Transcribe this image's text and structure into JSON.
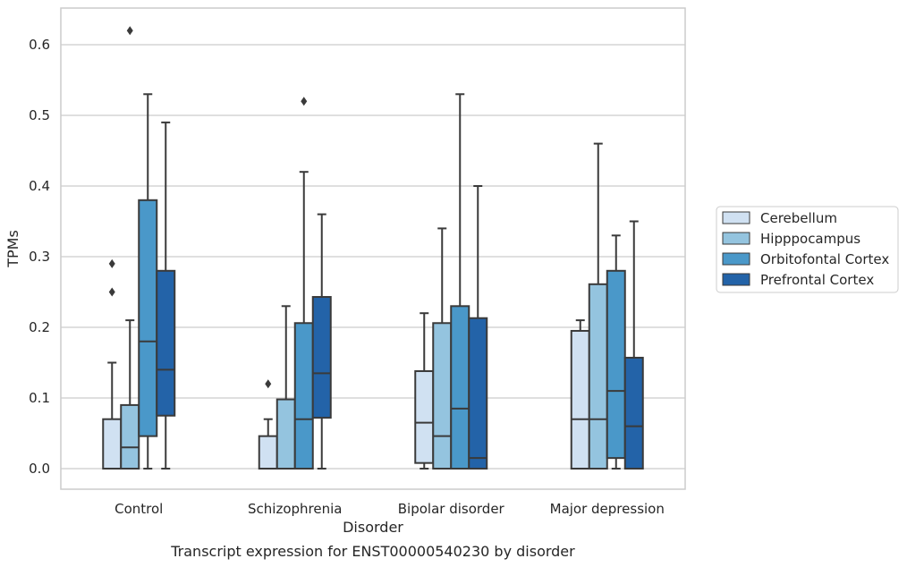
{
  "chart_data": {
    "type": "box",
    "caption": "Transcript expression for ENST00000540230 by disorder",
    "xlabel": "Disorder",
    "ylabel": "TPMs",
    "ylim": [
      -0.03,
      0.65
    ],
    "yticks": [
      "0.0",
      "0.1",
      "0.2",
      "0.3",
      "0.4",
      "0.5",
      "0.6"
    ],
    "grid": true,
    "legend_position": "right",
    "categories": [
      "Control",
      "Schizophrenia",
      "Bipolar disorder",
      "Major depression"
    ],
    "series": [
      {
        "name": "Cerebellum",
        "color": "#d0e1f2",
        "boxes": [
          {
            "whislo": 0.0,
            "q1": 0.0,
            "med": 0.0,
            "q3": 0.07,
            "whishi": 0.15,
            "fliers": [
              0.25,
              0.29
            ]
          },
          {
            "whislo": 0.0,
            "q1": 0.0,
            "med": 0.0,
            "q3": 0.046,
            "whishi": 0.07,
            "fliers": [
              0.12
            ]
          },
          {
            "whislo": 0.0,
            "q1": 0.008,
            "med": 0.065,
            "q3": 0.138,
            "whishi": 0.22,
            "fliers": []
          },
          {
            "whislo": 0.0,
            "q1": 0.0,
            "med": 0.07,
            "q3": 0.195,
            "whishi": 0.21,
            "fliers": []
          }
        ]
      },
      {
        "name": "Hipppocampus",
        "color": "#94c4df",
        "boxes": [
          {
            "whislo": 0.0,
            "q1": 0.0,
            "med": 0.03,
            "q3": 0.09,
            "whishi": 0.21,
            "fliers": [
              0.62
            ]
          },
          {
            "whislo": 0.0,
            "q1": 0.0,
            "med": 0.0,
            "q3": 0.098,
            "whishi": 0.23,
            "fliers": []
          },
          {
            "whislo": 0.0,
            "q1": 0.0,
            "med": 0.046,
            "q3": 0.206,
            "whishi": 0.34,
            "fliers": []
          },
          {
            "whislo": 0.0,
            "q1": 0.0,
            "med": 0.07,
            "q3": 0.261,
            "whishi": 0.46,
            "fliers": []
          }
        ]
      },
      {
        "name": "Orbitofontal Cortex",
        "color": "#4a98c9",
        "boxes": [
          {
            "whislo": 0.0,
            "q1": 0.046,
            "med": 0.18,
            "q3": 0.38,
            "whishi": 0.53,
            "fliers": []
          },
          {
            "whislo": 0.0,
            "q1": 0.0,
            "med": 0.07,
            "q3": 0.206,
            "whishi": 0.42,
            "fliers": [
              0.52
            ]
          },
          {
            "whislo": 0.0,
            "q1": 0.0,
            "med": 0.085,
            "q3": 0.23,
            "whishi": 0.53,
            "fliers": []
          },
          {
            "whislo": 0.0,
            "q1": 0.015,
            "med": 0.11,
            "q3": 0.28,
            "whishi": 0.33,
            "fliers": []
          }
        ]
      },
      {
        "name": "Prefrontal Cortex",
        "color": "#2363a8",
        "boxes": [
          {
            "whislo": 0.0,
            "q1": 0.075,
            "med": 0.14,
            "q3": 0.28,
            "whishi": 0.49,
            "fliers": []
          },
          {
            "whislo": 0.0,
            "q1": 0.072,
            "med": 0.135,
            "q3": 0.243,
            "whishi": 0.36,
            "fliers": []
          },
          {
            "whislo": 0.0,
            "q1": 0.0,
            "med": 0.015,
            "q3": 0.213,
            "whishi": 0.4,
            "fliers": []
          },
          {
            "whislo": 0.0,
            "q1": 0.0,
            "med": 0.06,
            "q3": 0.157,
            "whishi": 0.35,
            "fliers": []
          }
        ]
      }
    ]
  }
}
